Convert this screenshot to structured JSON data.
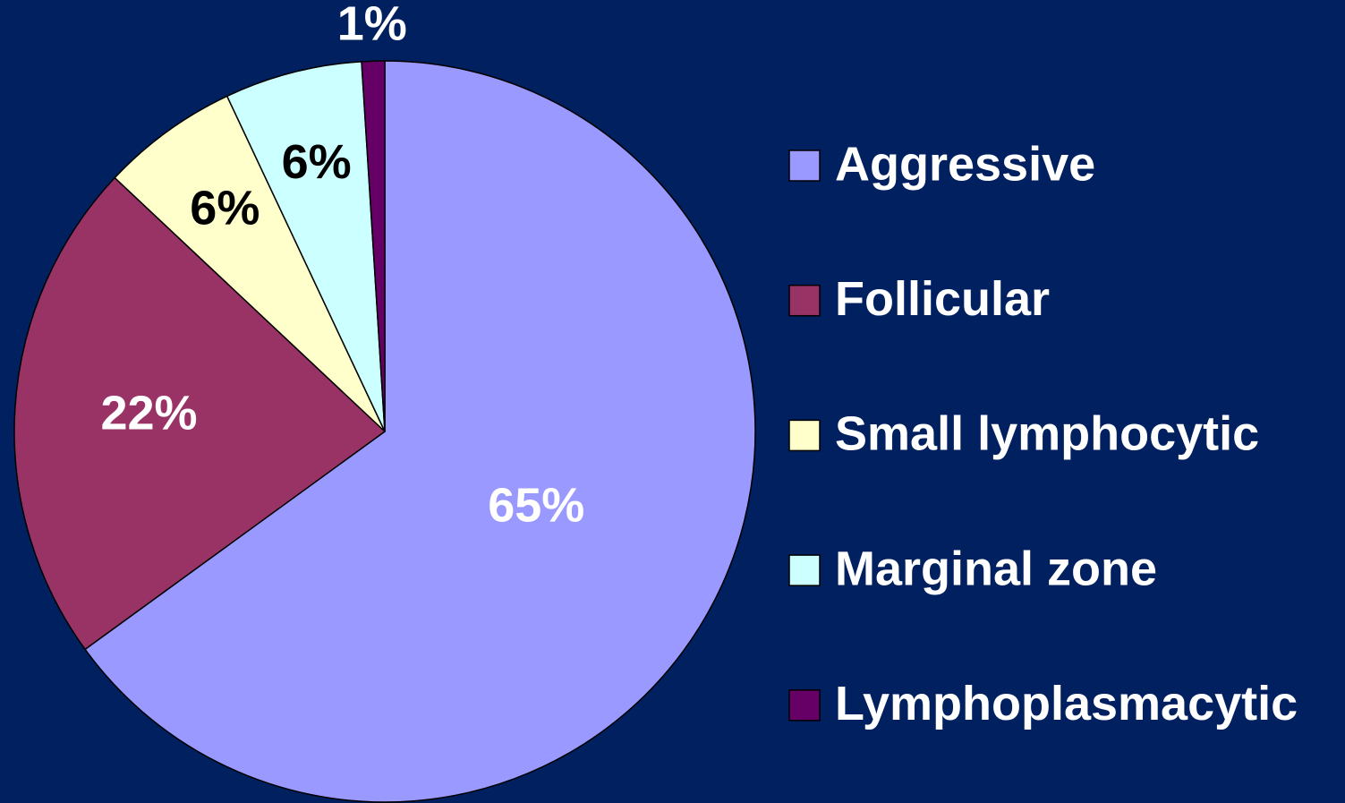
{
  "chart_data": {
    "type": "pie",
    "categories": [
      "Aggressive",
      "Follicular",
      "Small lymphocytic",
      "Marginal zone",
      "Lymphoplasmacytic"
    ],
    "values": [
      65,
      22,
      6,
      6,
      1
    ],
    "value_labels": [
      "65%",
      "22%",
      "6%",
      "6%",
      "1%"
    ],
    "colors": [
      "#9999ff",
      "#993366",
      "#ffffcc",
      "#ccffff",
      "#660066"
    ],
    "legend": "right"
  }
}
